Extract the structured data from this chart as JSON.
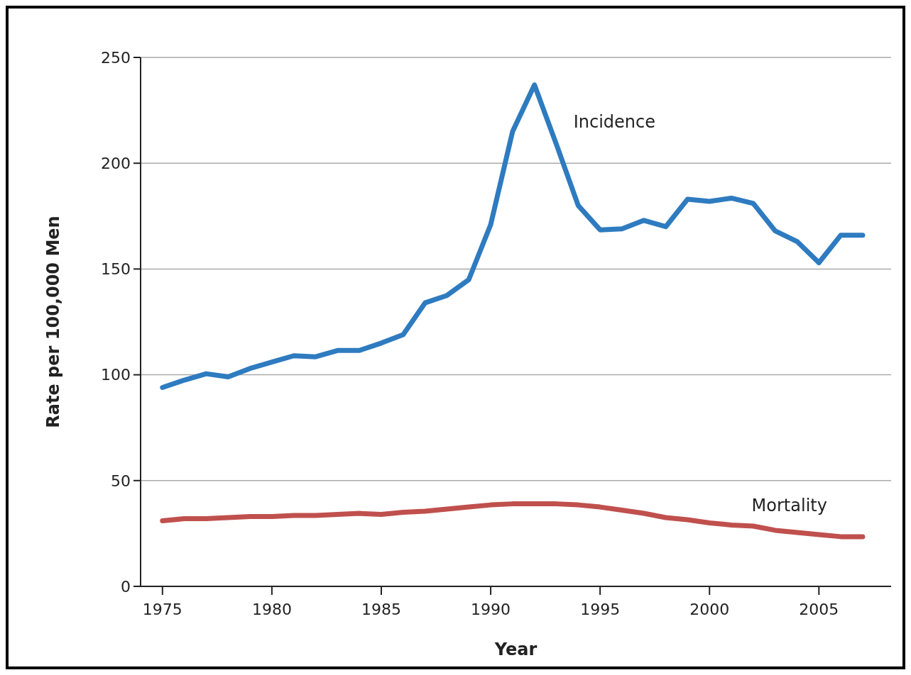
{
  "chart_data": {
    "type": "line",
    "xlabel": "Year",
    "ylabel": "Rate per 100,000 Men",
    "x": [
      1975,
      1976,
      1977,
      1978,
      1979,
      1980,
      1981,
      1982,
      1983,
      1984,
      1985,
      1986,
      1987,
      1988,
      1989,
      1990,
      1991,
      1992,
      1993,
      1994,
      1995,
      1996,
      1997,
      1998,
      1999,
      2000,
      2001,
      2002,
      2003,
      2004,
      2005,
      2006,
      2007
    ],
    "series": [
      {
        "name": "Incidence",
        "color": "#2e7bc0",
        "values": [
          94,
          97.5,
          100.5,
          99,
          103,
          106,
          109,
          108.5,
          111.5,
          111.5,
          115,
          119,
          134,
          137.5,
          145,
          171,
          215,
          237,
          209,
          180,
          168.5,
          169,
          173,
          170,
          183,
          182,
          183.5,
          181,
          168,
          163,
          153,
          166,
          166
        ]
      },
      {
        "name": "Mortality",
        "color": "#c0504d",
        "values": [
          31,
          32,
          32,
          32.5,
          33,
          33,
          33.5,
          33.5,
          34,
          34.5,
          34,
          35,
          35.5,
          36.5,
          37.5,
          38.5,
          39,
          39,
          39,
          38.5,
          37.5,
          36,
          34.5,
          32.5,
          31.5,
          30,
          29,
          28.5,
          26.5,
          25.5,
          24.5,
          23.5,
          23.5
        ]
      }
    ],
    "xlim": [
      1974,
      2008.3
    ],
    "xticks": [
      1975,
      1980,
      1985,
      1990,
      1995,
      2000,
      2005
    ],
    "ylim": [
      0,
      250
    ],
    "yticks": [
      0,
      50,
      100,
      150,
      200,
      250
    ],
    "grid": "y",
    "legend": false,
    "marker": "none",
    "line_style": "solid"
  }
}
